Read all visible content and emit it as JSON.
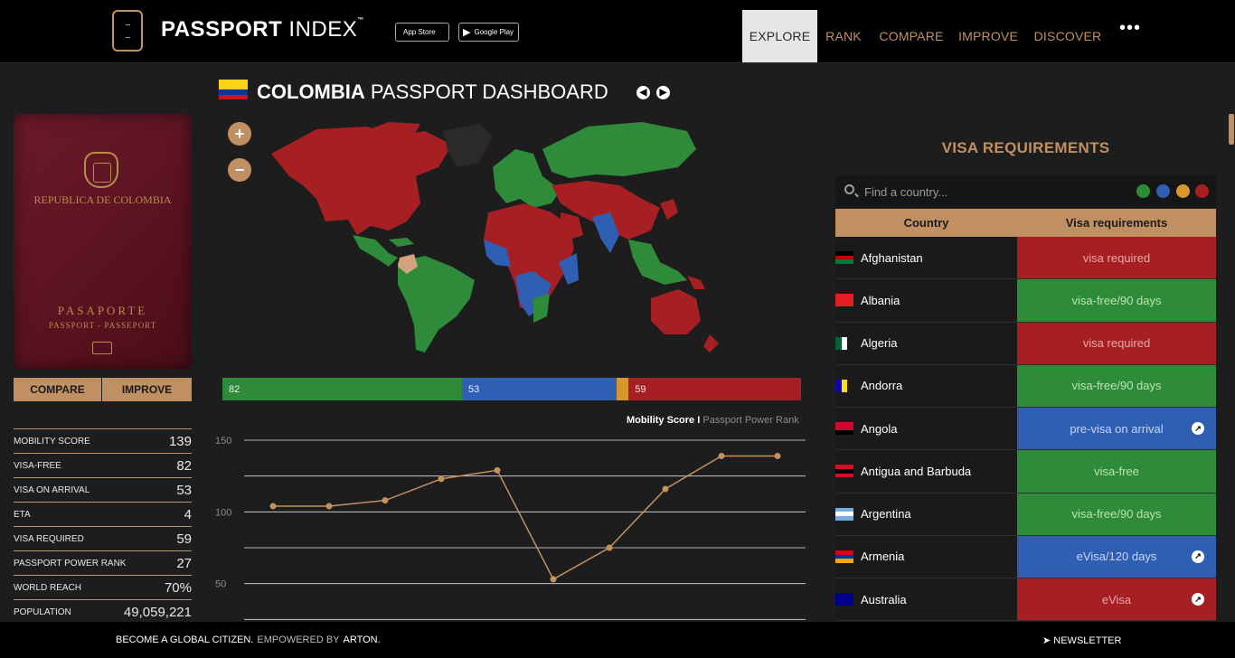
{
  "header": {
    "logo_bold": "PASSPORT",
    "logo_light": " INDEX",
    "logo_tm": "™",
    "app_store": "App Store",
    "google_play": "Google Play",
    "nav": [
      "EXPLORE",
      "RANK",
      "COMPARE",
      "IMPROVE",
      "DISCOVER"
    ],
    "more": "•••"
  },
  "passport": {
    "country": "REPUBLICA DE COLOMBIA",
    "title": "PASAPORTE",
    "subtitle": "PASSPORT - PASSEPORT",
    "compare_label": "COMPARE",
    "improve_label": "IMPROVE"
  },
  "stats": [
    {
      "label": "MOBILITY SCORE",
      "value": "139"
    },
    {
      "label": "VISA-FREE",
      "value": "82"
    },
    {
      "label": "VISA ON ARRIVAL",
      "value": "53"
    },
    {
      "label": "ETA",
      "value": "4"
    },
    {
      "label": "VISA REQUIRED",
      "value": "59"
    },
    {
      "label": "PASSPORT POWER RANK",
      "value": "27"
    },
    {
      "label": "WORLD REACH",
      "value": "70%"
    },
    {
      "label": "POPULATION",
      "value": "49,059,221"
    }
  ],
  "dashboard": {
    "country": "COLOMBIA",
    "title_rest": " PASSPORT DASHBOARD",
    "zoom_in": "+",
    "zoom_out": "−",
    "prev": "◀",
    "next": "▶"
  },
  "breakdown": [
    {
      "label": "82",
      "value": 82,
      "color": "#2e8b3a"
    },
    {
      "label": "53",
      "value": 53,
      "color": "#2f5fb3"
    },
    {
      "label": "",
      "value": 4,
      "color": "#d8962f"
    },
    {
      "label": "59",
      "value": 59,
      "color": "#a51f23"
    }
  ],
  "chart_data": {
    "type": "line",
    "title": "",
    "legend": [
      "Mobility Score",
      "Passport Power Rank"
    ],
    "legend_sep": " I ",
    "xlabel": "",
    "ylabel": "",
    "ylim": [
      0,
      150
    ],
    "yticks": [
      150,
      100,
      50
    ],
    "y_tick_labels": [
      "150",
      "100",
      "50"
    ],
    "series": [
      {
        "name": "Mobility Score",
        "values": [
          104,
          104,
          108,
          123,
          129,
          53,
          75,
          116,
          139,
          139
        ]
      }
    ],
    "line_color": "#c4915f",
    "grid": true
  },
  "visa": {
    "title": "VISA REQUIREMENTS",
    "search_placeholder": "Find a country...",
    "legend_colors": [
      "#2e8b3a",
      "#2f5fb3",
      "#d8962f",
      "#a51f23"
    ],
    "col_country": "Country",
    "col_req": "Visa requirements",
    "rows": [
      {
        "country": "Afghanistan",
        "req": "visa required",
        "status": "red",
        "link": false
      },
      {
        "country": "Albania",
        "req": "visa-free/90 days",
        "status": "green",
        "link": false
      },
      {
        "country": "Algeria",
        "req": "visa required",
        "status": "red",
        "link": false
      },
      {
        "country": "Andorra",
        "req": "visa-free/90 days",
        "status": "green",
        "link": false
      },
      {
        "country": "Angola",
        "req": "pre-visa on arrival",
        "status": "blue",
        "link": true
      },
      {
        "country": "Antigua and Barbuda",
        "req": "visa-free",
        "status": "green",
        "link": false
      },
      {
        "country": "Argentina",
        "req": "visa-free/90 days",
        "status": "green",
        "link": false
      },
      {
        "country": "Armenia",
        "req": "eVisa/120 days",
        "status": "blue",
        "link": true
      },
      {
        "country": "Australia",
        "req": "eVisa",
        "status": "red",
        "link": true
      }
    ],
    "status_colors": {
      "red": "#a51f23",
      "green": "#2e8b3a",
      "blue": "#2f5fb3"
    },
    "text_colors": {
      "red": "#e9a7a7",
      "green": "#b8e5b5",
      "blue": "#c6d6f5"
    }
  },
  "footer": {
    "tagline": "BECOME A GLOBAL CITIZEN.",
    "powered": "EMPOWERED BY",
    "brand": "ARTON.",
    "newsletter": "NEWSLETTER"
  }
}
